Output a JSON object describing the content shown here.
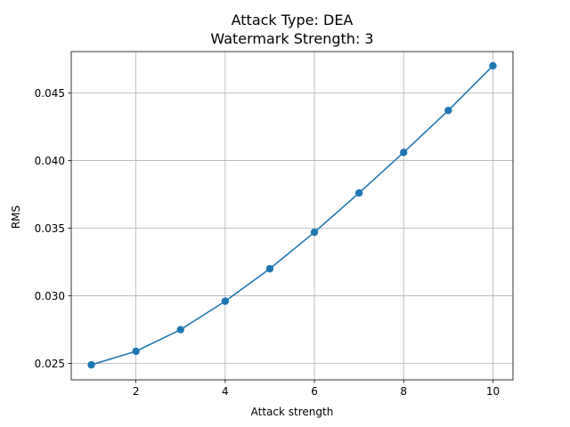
{
  "chart_data": {
    "type": "line",
    "title_line1": "Attack Type: DEA",
    "title_line2": "Watermark Strength: 3",
    "xlabel": "Attack strength",
    "ylabel": "RMS",
    "x": [
      1,
      2,
      3,
      4,
      5,
      6,
      7,
      8,
      9,
      10
    ],
    "series": [
      {
        "values": [
          0.0249,
          0.0259,
          0.0275,
          0.0296,
          0.032,
          0.0347,
          0.0376,
          0.0406,
          0.0437,
          0.047
        ],
        "color": "#1f77b4",
        "marker": "circle"
      }
    ],
    "xlim": [
      0.55,
      10.45
    ],
    "ylim": [
      0.02379,
      0.04805
    ],
    "xticks": [
      2,
      4,
      6,
      8,
      10
    ],
    "xtick_labels": [
      "2",
      "4",
      "6",
      "8",
      "10"
    ],
    "yticks": [
      0.025,
      0.03,
      0.035,
      0.04,
      0.045
    ],
    "ytick_labels": [
      "0.025",
      "0.030",
      "0.035",
      "0.040",
      "0.045"
    ],
    "grid": true
  }
}
